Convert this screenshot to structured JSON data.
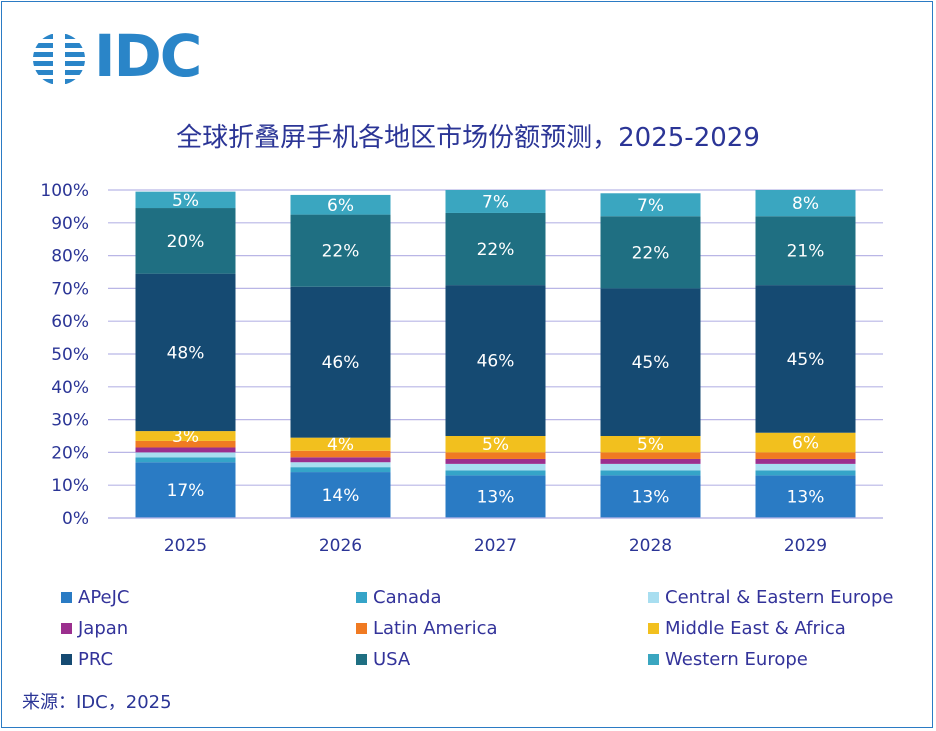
{
  "logo": {
    "text": "IDC"
  },
  "title": "全球折叠屏手机各地区市场份额预测，2025-2029",
  "source": "来源：IDC，2025",
  "chart_data": {
    "type": "bar",
    "stacked": true,
    "title": "全球折叠屏手机各地区市场份额预测，2025-2029",
    "categories": [
      "2025",
      "2026",
      "2027",
      "2028",
      "2029"
    ],
    "ylim": [
      0,
      100
    ],
    "yticks": [
      "0%",
      "10%",
      "20%",
      "30%",
      "40%",
      "50%",
      "60%",
      "70%",
      "80%",
      "90%",
      "100%"
    ],
    "grid": true,
    "legend_position": "bottom",
    "series": [
      {
        "name": "APeJC",
        "color": "#2a7bc4",
        "values": [
          17,
          14,
          13,
          13,
          13
        ],
        "labels": [
          "17%",
          "14%",
          "13%",
          "13%",
          "13%"
        ]
      },
      {
        "name": "Canada",
        "color": "#35a4c8",
        "values": [
          1.5,
          1.5,
          1.5,
          1.5,
          1.5
        ],
        "labels": [
          "",
          "",
          "",
          "",
          ""
        ]
      },
      {
        "name": "Central & Eastern Europe",
        "color": "#a8def0",
        "values": [
          1.5,
          1.5,
          2,
          2,
          2
        ],
        "labels": [
          "",
          "",
          "",
          "",
          ""
        ]
      },
      {
        "name": "Japan",
        "color": "#9b2f8e",
        "values": [
          1.5,
          1.5,
          1.5,
          1.5,
          1.5
        ],
        "labels": [
          "",
          "",
          "",
          "",
          ""
        ]
      },
      {
        "name": "Latin America",
        "color": "#f07a22",
        "values": [
          2,
          2,
          2,
          2,
          2
        ],
        "labels": [
          "",
          "",
          "",
          "",
          ""
        ]
      },
      {
        "name": "Middle East & Africa",
        "color": "#f2c01e",
        "values": [
          3,
          4,
          5,
          5,
          6
        ],
        "labels": [
          "3%",
          "4%",
          "5%",
          "5%",
          "6%"
        ]
      },
      {
        "name": "PRC",
        "color": "#154a72",
        "values": [
          48,
          46,
          46,
          45,
          45
        ],
        "labels": [
          "48%",
          "46%",
          "46%",
          "45%",
          "45%"
        ]
      },
      {
        "name": "USA",
        "color": "#1f6f82",
        "values": [
          20,
          22,
          22,
          22,
          21
        ],
        "labels": [
          "20%",
          "22%",
          "22%",
          "22%",
          "21%"
        ]
      },
      {
        "name": "Western Europe",
        "color": "#3aa6c0",
        "values": [
          5,
          6,
          7,
          7,
          8
        ],
        "labels": [
          "5%",
          "6%",
          "7%",
          "7%",
          "8%"
        ]
      }
    ]
  }
}
